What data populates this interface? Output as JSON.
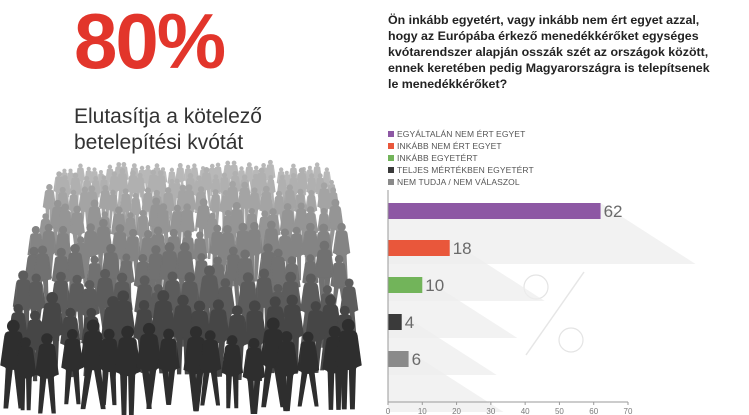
{
  "headline": {
    "percent": "80%",
    "subtitle_line1": "Elutasítja a kötelező",
    "subtitle_line2": "betelepítési kvótát"
  },
  "question": "Ön inkább egyetért, vagy inkább nem ért egyet azzal, hogy az Európába érkező menedékkérőket egységes kvótarendszer alapján osszák szét az országok között, ennek keretében pedig Magyarországra is telepítsenek le menedékkérőket?",
  "colors": {
    "accent_red": "#e2352b",
    "purple": "#8d58a4",
    "orange": "#e9573b",
    "green": "#72b45a",
    "dark": "#3a3a3a",
    "gray": "#8a8a8a",
    "crowd_dark": "#2e2e2e",
    "crowd_light": "#b8b8b8"
  },
  "legend": [
    {
      "label": "EGYÁLTALÁN NEM ÉRT EGYET",
      "color": "#8d58a4"
    },
    {
      "label": "INKÁBB NEM ÉRT EGYET",
      "color": "#e9573b"
    },
    {
      "label": "INKÁBB EGYETÉRT",
      "color": "#72b45a"
    },
    {
      "label": "TELJES MÉRTÉKBEN EGYETÉRT",
      "color": "#3a3a3a"
    },
    {
      "label": "NEM TUDJA / NEM VÁLASZOL",
      "color": "#8a8a8a"
    }
  ],
  "chart_data": {
    "type": "bar",
    "orientation": "horizontal",
    "title": "",
    "categories": [
      "EGYÁLTALÁN NEM ÉRT EGYET",
      "INKÁBB NEM ÉRT EGYET",
      "INKÁBB EGYETÉRT",
      "TELJES MÉRTÉKBEN EGYETÉRT",
      "NEM TUDJA / NEM VÁLASZOL"
    ],
    "values": [
      62,
      18,
      10,
      4,
      6
    ],
    "value_labels": [
      "62",
      "18",
      "10",
      "4",
      "6"
    ],
    "colors": [
      "#8d58a4",
      "#e9573b",
      "#72b45a",
      "#3a3a3a",
      "#8a8a8a"
    ],
    "xlim": [
      0,
      70
    ],
    "xticks": [
      "0",
      "10",
      "20",
      "30",
      "40",
      "50",
      "60",
      "70"
    ],
    "xlabel": "",
    "ylabel": "",
    "grid": false,
    "legend": "top"
  }
}
